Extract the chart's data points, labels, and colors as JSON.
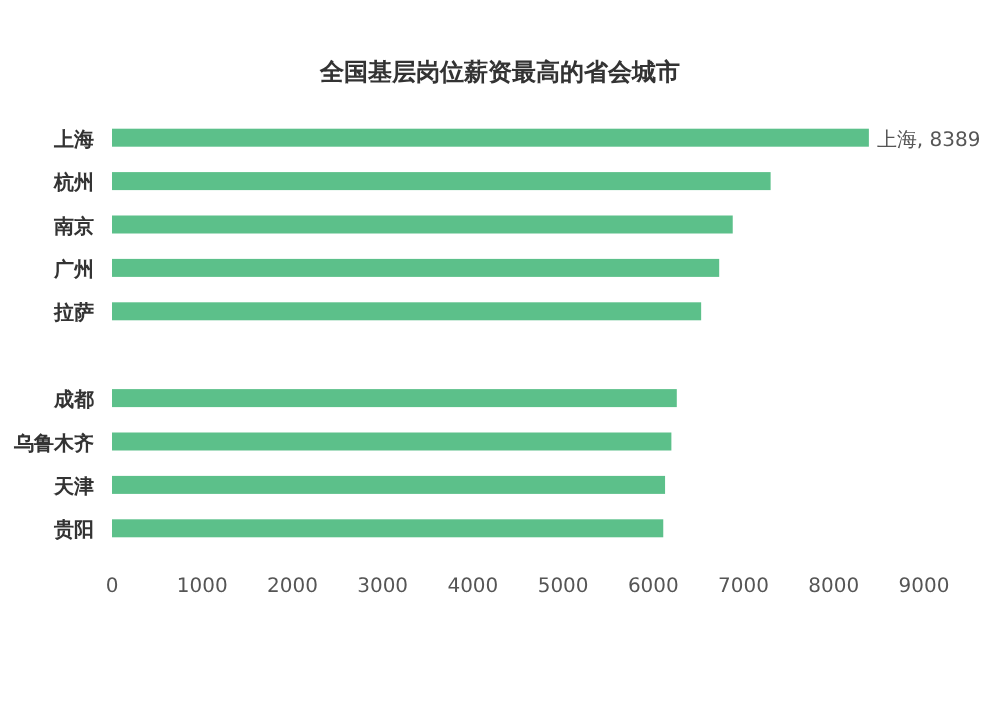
{
  "chart_data": {
    "type": "bar",
    "orientation": "horizontal",
    "title": "全国基层岗位薪资最高的省会城市",
    "categories": [
      "上海",
      "杭州",
      "南京",
      "广州",
      "拉萨",
      null,
      "成都",
      "乌鲁木齐",
      "天津",
      "贵阳"
    ],
    "values": [
      8389,
      7300,
      6880,
      6730,
      6530,
      null,
      6260,
      6200,
      6130,
      6110
    ],
    "value_labels": [
      "上海, 8389",
      null,
      null,
      null,
      null,
      null,
      null,
      null,
      null,
      null
    ],
    "color": "#5cc08a",
    "xlim": [
      0,
      9000
    ],
    "xticks": [
      0,
      1000,
      2000,
      3000,
      4000,
      5000,
      6000,
      7000,
      8000,
      9000
    ],
    "grid": false
  }
}
